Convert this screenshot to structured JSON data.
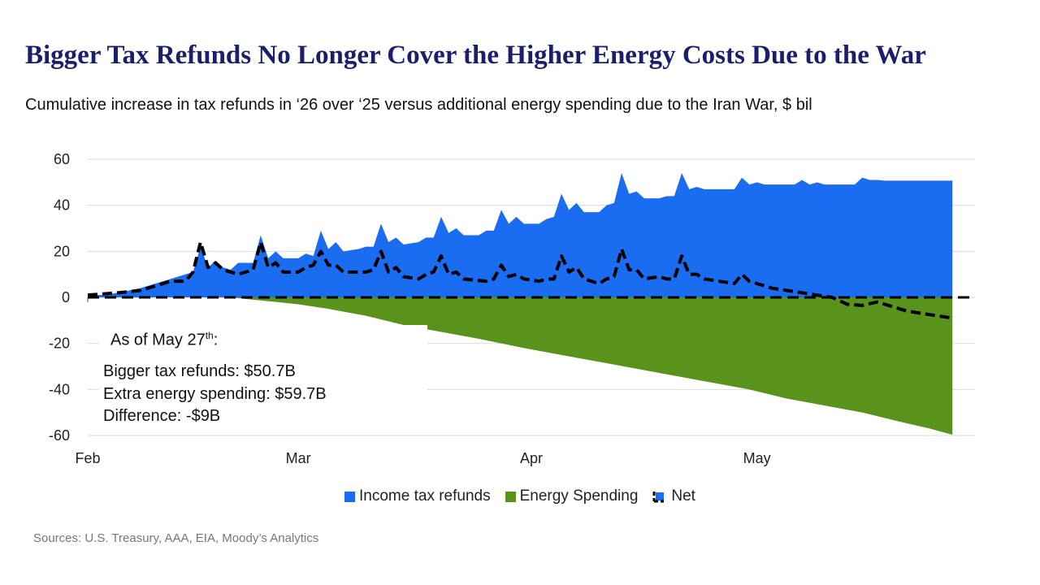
{
  "title": "Bigger Tax Refunds No Longer Cover the Higher Energy Costs Due to the War",
  "subtitle": "Cumulative increase in tax refunds in ‘26 over ‘25 versus additional energy spending due to the Iran War, $ bil",
  "annotation": {
    "as_of_prefix": "As of May 27",
    "as_of_sup": "th",
    "as_of_suffix": ":",
    "lines": [
      "Bigger tax refunds: $50.7B",
      "Extra energy spending: $59.7B",
      "Difference: -$9B"
    ]
  },
  "source": "Sources: U.S. Treasury, AAA, EIA, Moody’s Analytics",
  "colors": {
    "refunds": "#1a6cf0",
    "energy": "#5a931c",
    "net": "#000000",
    "title": "#1b1f6b"
  },
  "chart_data": {
    "type": "area",
    "x_ticks": [
      "Feb",
      "Mar",
      "Apr",
      "May"
    ],
    "y_ticks": [
      60,
      40,
      20,
      0,
      -20,
      -40,
      -60
    ],
    "ylim": [
      -60,
      60
    ],
    "grid": true,
    "legend_position": "bottom",
    "series": [
      {
        "name": "Income tax refunds",
        "style": "area",
        "color": "#1a6cf0",
        "points": [
          [
            "2026-02-01",
            1
          ],
          [
            "2026-02-03",
            1
          ],
          [
            "2026-02-05",
            2
          ],
          [
            "2026-02-08",
            4
          ],
          [
            "2026-02-10",
            6
          ],
          [
            "2026-02-12",
            8
          ],
          [
            "2026-02-14",
            10
          ],
          [
            "2026-02-15",
            11
          ],
          [
            "2026-02-16",
            22
          ],
          [
            "2026-02-17",
            13
          ],
          [
            "2026-02-18",
            16
          ],
          [
            "2026-02-19",
            13
          ],
          [
            "2026-02-20",
            12
          ],
          [
            "2026-02-21",
            15
          ],
          [
            "2026-02-23",
            15
          ],
          [
            "2026-02-24",
            27
          ],
          [
            "2026-02-25",
            17
          ],
          [
            "2026-02-26",
            20
          ],
          [
            "2026-02-27",
            17
          ],
          [
            "2026-03-01",
            17
          ],
          [
            "2026-03-02",
            19
          ],
          [
            "2026-03-03",
            18
          ],
          [
            "2026-03-04",
            29
          ],
          [
            "2026-03-05",
            21
          ],
          [
            "2026-03-06",
            24
          ],
          [
            "2026-03-07",
            20
          ],
          [
            "2026-03-09",
            21
          ],
          [
            "2026-03-10",
            22
          ],
          [
            "2026-03-11",
            22
          ],
          [
            "2026-03-12",
            32
          ],
          [
            "2026-03-13",
            24
          ],
          [
            "2026-03-14",
            26
          ],
          [
            "2026-03-15",
            23
          ],
          [
            "2026-03-17",
            24
          ],
          [
            "2026-03-18",
            26
          ],
          [
            "2026-03-19",
            26
          ],
          [
            "2026-03-20",
            35
          ],
          [
            "2026-03-21",
            28
          ],
          [
            "2026-03-22",
            30
          ],
          [
            "2026-03-23",
            27
          ],
          [
            "2026-03-25",
            27
          ],
          [
            "2026-03-26",
            29
          ],
          [
            "2026-03-27",
            29
          ],
          [
            "2026-03-28",
            38
          ],
          [
            "2026-03-29",
            32
          ],
          [
            "2026-03-30",
            35
          ],
          [
            "2026-03-31",
            32
          ],
          [
            "2026-04-02",
            32
          ],
          [
            "2026-04-03",
            34
          ],
          [
            "2026-04-04",
            35
          ],
          [
            "2026-04-05",
            45
          ],
          [
            "2026-04-06",
            38
          ],
          [
            "2026-04-07",
            41
          ],
          [
            "2026-04-08",
            37
          ],
          [
            "2026-04-10",
            37
          ],
          [
            "2026-04-11",
            40
          ],
          [
            "2026-04-12",
            41
          ],
          [
            "2026-04-13",
            54
          ],
          [
            "2026-04-14",
            45
          ],
          [
            "2026-04-15",
            46
          ],
          [
            "2026-04-16",
            43
          ],
          [
            "2026-04-18",
            43
          ],
          [
            "2026-04-19",
            44
          ],
          [
            "2026-04-20",
            44
          ],
          [
            "2026-04-21",
            54
          ],
          [
            "2026-04-22",
            47
          ],
          [
            "2026-04-23",
            48
          ],
          [
            "2026-04-24",
            47
          ],
          [
            "2026-04-26",
            47
          ],
          [
            "2026-04-27",
            47
          ],
          [
            "2026-04-28",
            47
          ],
          [
            "2026-04-29",
            52
          ],
          [
            "2026-04-30",
            49
          ],
          [
            "2026-05-01",
            50
          ],
          [
            "2026-05-02",
            49
          ],
          [
            "2026-05-04",
            49
          ],
          [
            "2026-05-05",
            49
          ],
          [
            "2026-05-06",
            49
          ],
          [
            "2026-05-07",
            51
          ],
          [
            "2026-05-08",
            49
          ],
          [
            "2026-05-09",
            50
          ],
          [
            "2026-05-10",
            49
          ],
          [
            "2026-05-12",
            49
          ],
          [
            "2026-05-13",
            49
          ],
          [
            "2026-05-14",
            49
          ],
          [
            "2026-05-15",
            52
          ],
          [
            "2026-05-16",
            51
          ],
          [
            "2026-05-17",
            51
          ],
          [
            "2026-05-18",
            50.7
          ],
          [
            "2026-05-27",
            50.7
          ]
        ]
      },
      {
        "name": "Energy Spending",
        "style": "area",
        "color": "#5a931c",
        "points": [
          [
            "2026-02-01",
            0
          ],
          [
            "2026-02-20",
            0
          ],
          [
            "2026-02-23",
            -1
          ],
          [
            "2026-02-26",
            -2
          ],
          [
            "2026-03-01",
            -3
          ],
          [
            "2026-03-05",
            -5
          ],
          [
            "2026-03-10",
            -8
          ],
          [
            "2026-03-15",
            -12
          ],
          [
            "2026-03-20",
            -15
          ],
          [
            "2026-03-25",
            -18
          ],
          [
            "2026-03-31",
            -22
          ],
          [
            "2026-04-05",
            -25
          ],
          [
            "2026-04-10",
            -28
          ],
          [
            "2026-04-15",
            -31
          ],
          [
            "2026-04-20",
            -34
          ],
          [
            "2026-04-25",
            -37
          ],
          [
            "2026-04-30",
            -40
          ],
          [
            "2026-05-05",
            -44
          ],
          [
            "2026-05-10",
            -47
          ],
          [
            "2026-05-15",
            -50
          ],
          [
            "2026-05-20",
            -54
          ],
          [
            "2026-05-24",
            -57
          ],
          [
            "2026-05-27",
            -59.7
          ]
        ]
      },
      {
        "name": "Net",
        "style": "dashed-line",
        "color": "#000000",
        "points": [
          [
            "2026-02-01",
            1
          ],
          [
            "2026-02-05",
            2
          ],
          [
            "2026-02-08",
            3
          ],
          [
            "2026-02-12",
            7
          ],
          [
            "2026-02-14",
            7
          ],
          [
            "2026-02-15",
            11
          ],
          [
            "2026-02-16",
            24
          ],
          [
            "2026-02-17",
            13
          ],
          [
            "2026-02-18",
            15
          ],
          [
            "2026-02-19",
            12
          ],
          [
            "2026-02-20",
            11
          ],
          [
            "2026-02-21",
            10
          ],
          [
            "2026-02-23",
            12
          ],
          [
            "2026-02-24",
            24
          ],
          [
            "2026-02-25",
            13
          ],
          [
            "2026-02-26",
            15
          ],
          [
            "2026-02-27",
            11
          ],
          [
            "2026-03-01",
            11
          ],
          [
            "2026-03-02",
            13
          ],
          [
            "2026-03-03",
            14
          ],
          [
            "2026-03-04",
            20
          ],
          [
            "2026-03-05",
            14
          ],
          [
            "2026-03-06",
            14
          ],
          [
            "2026-03-07",
            11
          ],
          [
            "2026-03-10",
            11
          ],
          [
            "2026-03-11",
            12
          ],
          [
            "2026-03-12",
            20
          ],
          [
            "2026-03-13",
            11
          ],
          [
            "2026-03-14",
            13
          ],
          [
            "2026-03-15",
            9
          ],
          [
            "2026-03-17",
            8
          ],
          [
            "2026-03-18",
            10
          ],
          [
            "2026-03-19",
            11
          ],
          [
            "2026-03-20",
            18
          ],
          [
            "2026-03-21",
            10
          ],
          [
            "2026-03-22",
            11
          ],
          [
            "2026-03-23",
            8
          ],
          [
            "2026-03-26",
            7
          ],
          [
            "2026-03-27",
            8
          ],
          [
            "2026-03-28",
            14
          ],
          [
            "2026-03-29",
            9
          ],
          [
            "2026-03-30",
            10
          ],
          [
            "2026-03-31",
            8
          ],
          [
            "2026-04-02",
            7
          ],
          [
            "2026-04-03",
            8
          ],
          [
            "2026-04-04",
            8
          ],
          [
            "2026-04-05",
            18
          ],
          [
            "2026-04-06",
            11
          ],
          [
            "2026-04-07",
            13
          ],
          [
            "2026-04-08",
            8
          ],
          [
            "2026-04-10",
            6
          ],
          [
            "2026-04-11",
            8
          ],
          [
            "2026-04-12",
            9
          ],
          [
            "2026-04-13",
            21
          ],
          [
            "2026-04-14",
            12
          ],
          [
            "2026-04-15",
            12
          ],
          [
            "2026-04-16",
            8
          ],
          [
            "2026-04-18",
            9
          ],
          [
            "2026-04-19",
            8
          ],
          [
            "2026-04-20",
            8
          ],
          [
            "2026-04-21",
            18
          ],
          [
            "2026-04-22",
            10
          ],
          [
            "2026-04-23",
            10
          ],
          [
            "2026-04-24",
            8
          ],
          [
            "2026-04-26",
            7
          ],
          [
            "2026-04-28",
            6
          ],
          [
            "2026-04-29",
            10
          ],
          [
            "2026-04-30",
            7
          ],
          [
            "2026-05-01",
            6
          ],
          [
            "2026-05-02",
            5
          ],
          [
            "2026-05-03",
            4
          ],
          [
            "2026-05-05",
            3
          ],
          [
            "2026-05-07",
            2
          ],
          [
            "2026-05-09",
            1
          ],
          [
            "2026-05-11",
            0
          ],
          [
            "2026-05-13",
            -3
          ],
          [
            "2026-05-15",
            -3.5
          ],
          [
            "2026-05-17",
            -2
          ],
          [
            "2026-05-19",
            -4
          ],
          [
            "2026-05-21",
            -6
          ],
          [
            "2026-05-24",
            -7.5
          ],
          [
            "2026-05-27",
            -9
          ]
        ]
      }
    ]
  }
}
